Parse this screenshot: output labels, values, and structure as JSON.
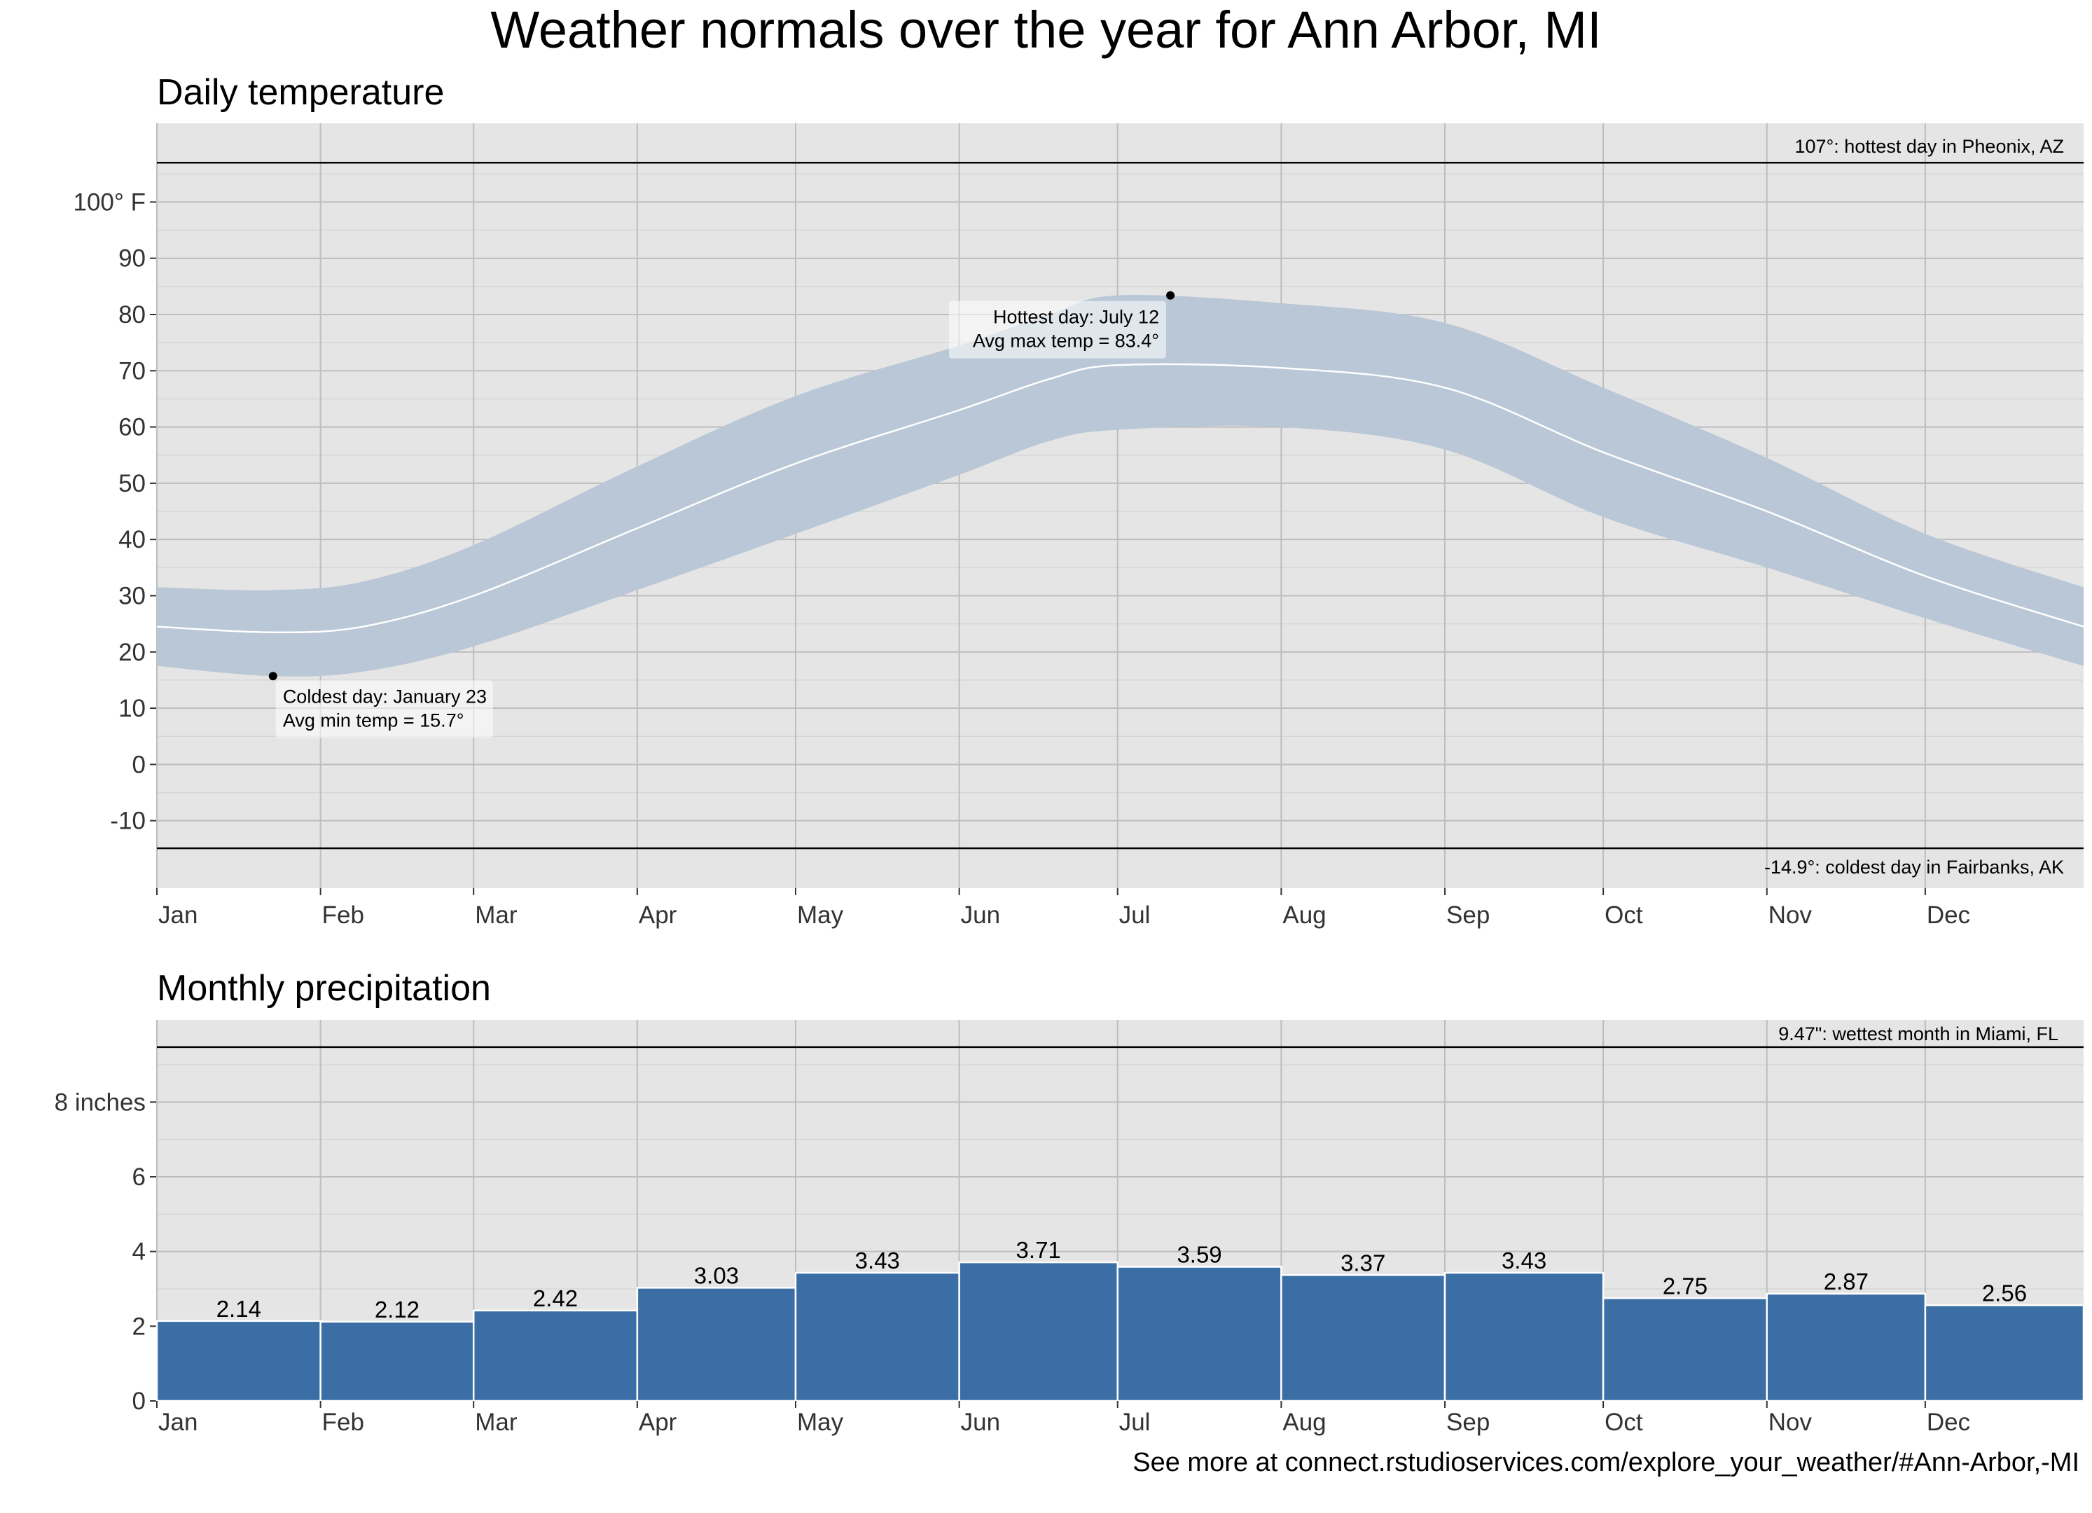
{
  "title": "Weather normals over the year for Ann Arbor, MI",
  "footer": "See more at connect.rstudioservices.com/explore_your_weather/#Ann-Arbor,-MI",
  "colors": {
    "panel_bg": "#e5e5e5",
    "grid": "#bdbdbd",
    "band": "#b9c7d6",
    "mean_line": "#ffffff",
    "bar": "#3a6ea5",
    "bar_stroke": "#ffffff",
    "ref_line": "#000000"
  },
  "chart_data": [
    {
      "id": "temperature",
      "type": "area",
      "title": "Daily temperature",
      "xlabel": "",
      "ylabel": "",
      "ylim": [
        -22,
        114
      ],
      "xlim": [
        1,
        366
      ],
      "x_ticks": [
        {
          "label": "Jan",
          "day": 1
        },
        {
          "label": "Feb",
          "day": 32
        },
        {
          "label": "Mar",
          "day": 61
        },
        {
          "label": "Apr",
          "day": 92
        },
        {
          "label": "May",
          "day": 122
        },
        {
          "label": "Jun",
          "day": 153
        },
        {
          "label": "Jul",
          "day": 183
        },
        {
          "label": "Aug",
          "day": 214
        },
        {
          "label": "Sep",
          "day": 245
        },
        {
          "label": "Oct",
          "day": 275
        },
        {
          "label": "Nov",
          "day": 306
        },
        {
          "label": "Dec",
          "day": 336
        }
      ],
      "y_ticks": [
        {
          "value": 100,
          "label": "100° F"
        },
        {
          "value": 90,
          "label": "90"
        },
        {
          "value": 80,
          "label": "80"
        },
        {
          "value": 70,
          "label": "70"
        },
        {
          "value": 60,
          "label": "60"
        },
        {
          "value": 50,
          "label": "50"
        },
        {
          "value": 40,
          "label": "40"
        },
        {
          "value": 30,
          "label": "30"
        },
        {
          "value": 20,
          "label": "20"
        },
        {
          "value": 10,
          "label": "10"
        },
        {
          "value": 0,
          "label": "0"
        },
        {
          "value": -10,
          "label": "-10"
        }
      ],
      "grid": true,
      "series": [
        {
          "x": [
            1,
            23,
            40,
            61,
            92,
            122,
            153,
            170,
            183,
            214,
            245,
            275,
            306,
            336,
            366
          ],
          "min": [
            17.5,
            15.7,
            16.5,
            21,
            31,
            41,
            51.5,
            57.5,
            59.5,
            60,
            56,
            44,
            35,
            26,
            17.5
          ],
          "mean": [
            24.5,
            23.5,
            24.5,
            30,
            42,
            53.5,
            63,
            68.5,
            71,
            70.5,
            67,
            55.5,
            45,
            33.5,
            24.5
          ],
          "max": [
            31.5,
            31,
            32.5,
            39,
            53,
            65.5,
            74.5,
            80,
            83.4,
            82,
            78.5,
            67,
            54.5,
            41,
            31.5
          ]
        }
      ],
      "annotations": [
        {
          "text": "107°: hottest day in Pheonix, AZ",
          "y": 107,
          "type": "hline",
          "align": "right",
          "text_position": "above"
        },
        {
          "text": "-14.9°: coldest day in Fairbanks, AK",
          "y": -14.9,
          "type": "hline",
          "align": "right",
          "text_position": "below"
        },
        {
          "lines": [
            "Hottest day: July 12",
            "Avg max temp = 83.4°"
          ],
          "x": 193,
          "y": 83.4,
          "type": "point",
          "label_side": "left"
        },
        {
          "lines": [
            "Coldest day: January 23",
            "Avg min temp = 15.7°"
          ],
          "x": 23,
          "y": 15.7,
          "type": "point",
          "label_side": "right"
        }
      ]
    },
    {
      "id": "precipitation",
      "type": "bar",
      "title": "Monthly precipitation",
      "xlabel": "",
      "ylabel": "",
      "ylim": [
        0,
        10.2
      ],
      "categories": [
        "Jan",
        "Feb",
        "Mar",
        "Apr",
        "May",
        "Jun",
        "Jul",
        "Aug",
        "Sep",
        "Oct",
        "Nov",
        "Dec"
      ],
      "values": [
        2.14,
        2.12,
        2.42,
        3.03,
        3.43,
        3.71,
        3.59,
        3.37,
        3.43,
        2.75,
        2.87,
        2.56
      ],
      "value_labels": [
        "2.14",
        "2.12",
        "2.42",
        "3.03",
        "3.43",
        "3.71",
        "3.59",
        "3.37",
        "3.43",
        "2.75",
        "2.87",
        "2.56"
      ],
      "bar_start_days": [
        1,
        32,
        61,
        92,
        122,
        153,
        183,
        214,
        245,
        275,
        306,
        336,
        366
      ],
      "y_ticks": [
        {
          "value": 8,
          "label": "8 inches"
        },
        {
          "value": 6,
          "label": "6"
        },
        {
          "value": 4,
          "label": "4"
        },
        {
          "value": 2,
          "label": "2"
        },
        {
          "value": 0,
          "label": "0"
        }
      ],
      "grid": true,
      "annotations": [
        {
          "text": "9.47\": wettest month in Miami, FL",
          "y": 9.47,
          "type": "hline",
          "align": "right",
          "text_position": "above"
        }
      ]
    }
  ]
}
